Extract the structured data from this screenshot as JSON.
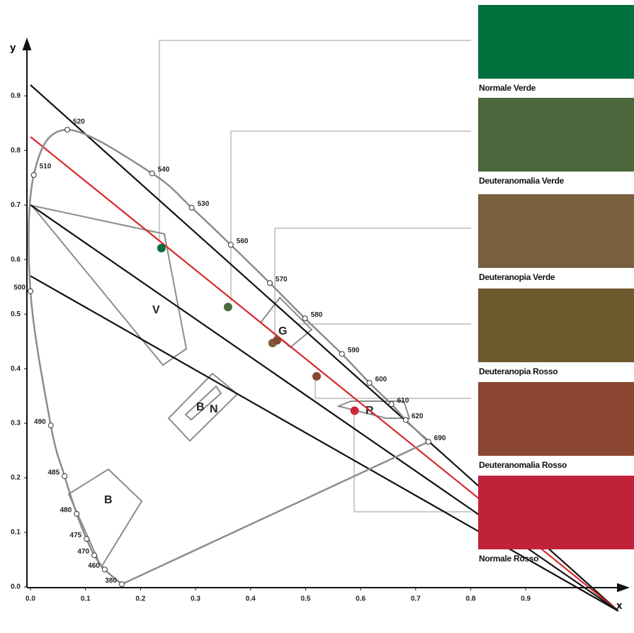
{
  "chart_data": {
    "type": "chromaticity",
    "x_label": "x",
    "y_label": "y",
    "xlim": [
      0,
      1.08
    ],
    "ylim": [
      0,
      0.99
    ],
    "xticks": [
      {
        "value": 0,
        "label": "0.0"
      },
      0.1,
      0.2,
      0.3,
      0.4,
      0.5,
      0.6,
      0.7,
      0.8,
      0.9
    ],
    "yticks": [
      {
        "value": 0,
        "label": "0.0"
      },
      0.1,
      0.2,
      0.3,
      0.4,
      0.5,
      0.6,
      0.7,
      0.8,
      0.9
    ],
    "locus": {
      "labels": [
        380,
        460,
        470,
        475,
        480,
        485,
        490,
        500,
        510,
        520,
        540,
        530,
        560,
        570,
        580,
        590,
        600,
        610,
        620,
        690
      ],
      "x": [
        0.166,
        0.135,
        0.116,
        0.102,
        0.084,
        0.062,
        0.037,
        0.0,
        0.006,
        0.067,
        0.221,
        0.293,
        0.364,
        0.435,
        0.499,
        0.566,
        0.616,
        0.656,
        0.682,
        0.723
      ],
      "y": [
        0.005,
        0.032,
        0.058,
        0.088,
        0.134,
        0.203,
        0.296,
        0.542,
        0.755,
        0.838,
        0.758,
        0.695,
        0.627,
        0.557,
        0.492,
        0.427,
        0.374,
        0.335,
        0.306,
        0.266
      ],
      "color": "#8c8c8c"
    },
    "lines": [
      {
        "color": "#111111",
        "x": [
          0,
          1.068
        ],
        "y": [
          0.92,
          -0.044
        ]
      },
      {
        "color": "#d8282e",
        "x": [
          0,
          1.068
        ],
        "y": [
          0.825,
          -0.044
        ]
      },
      {
        "color": "#111111",
        "x": [
          0,
          1.068
        ],
        "y": [
          0.7,
          -0.044
        ]
      },
      {
        "color": "#111111",
        "x": [
          0,
          1.068
        ],
        "y": [
          0.57,
          -0.044
        ]
      }
    ],
    "points": {
      "x": [
        0.238,
        0.359,
        0.44,
        0.448,
        0.52,
        0.589
      ],
      "y": [
        0.621,
        0.513,
        0.447,
        0.452,
        0.386,
        0.323
      ],
      "colors": [
        "#00703c",
        "#4a6a3c",
        "#7a6040",
        "#8a4630",
        "#8a4630",
        "#d0283a"
      ]
    },
    "region_labels": [
      "V",
      "G",
      "B",
      "N",
      "B",
      "R"
    ],
    "swatches": [
      {
        "name": "Normale Verde",
        "color": "#00703c"
      },
      {
        "name": "Deuteranomalia Verde",
        "color": "#4b683c"
      },
      {
        "name": "Deuteranopia Verde",
        "color": "#78603f"
      },
      {
        "name": "Deuteranopia Rosso",
        "color": "#6d592d"
      },
      {
        "name": "Deuteranomalia Rosso",
        "color": "#8a4630"
      },
      {
        "name": "Normale Rosso",
        "color": "#c0223a"
      }
    ]
  }
}
